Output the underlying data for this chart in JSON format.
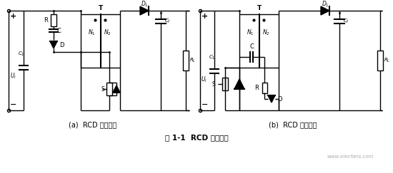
{
  "bg_color": "#ffffff",
  "fig_width": 5.5,
  "fig_height": 2.43,
  "dpi": 100,
  "caption_a": "(a)  RCD 箝位电路",
  "caption_b": "(b)  RCD 缓冲电路",
  "figure_caption": "图 1-1  RCD 吸收电路",
  "watermark": "www.elecfans.com",
  "lw": 1.0
}
